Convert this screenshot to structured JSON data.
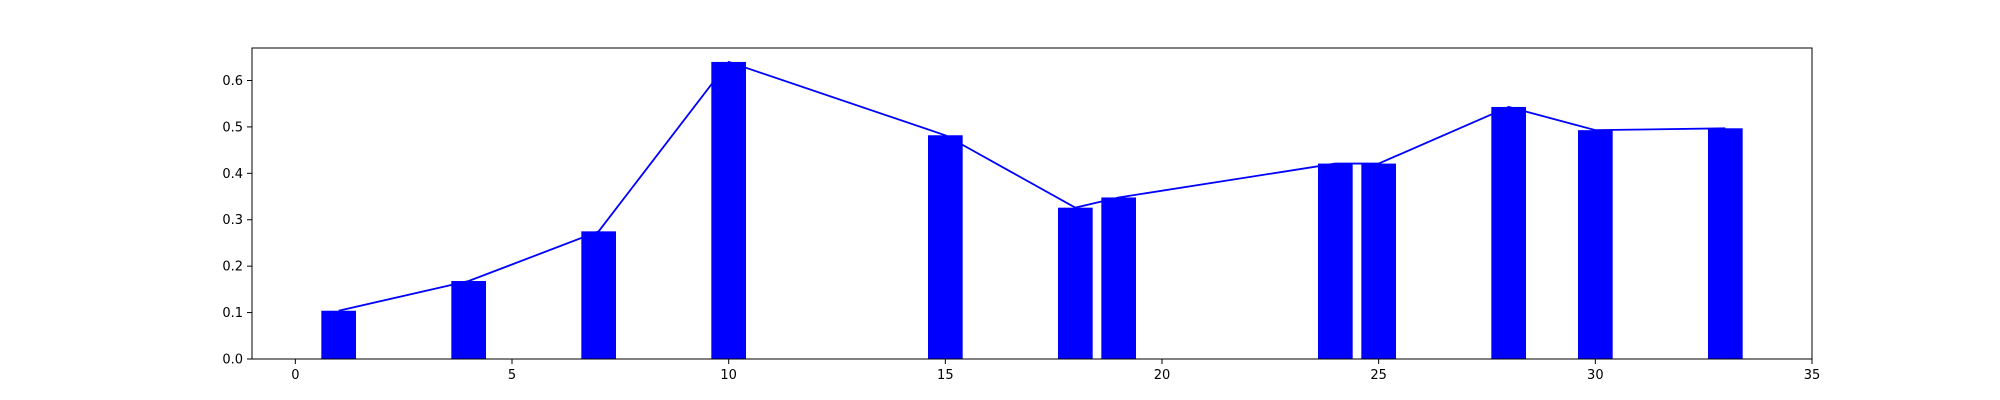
{
  "chart_data": {
    "type": "bar",
    "title": "",
    "xlabel": "",
    "ylabel": "",
    "xlim": [
      -1,
      35
    ],
    "ylim": [
      0,
      0.67
    ],
    "grid": false,
    "xticks": [
      0,
      5,
      10,
      15,
      20,
      25,
      30,
      35
    ],
    "xtick_labels": [
      "0",
      "5",
      "10",
      "15",
      "20",
      "25",
      "30",
      "35"
    ],
    "yticks": [
      0.0,
      0.1,
      0.2,
      0.3,
      0.4,
      0.5,
      0.6
    ],
    "ytick_labels": [
      "0.0",
      "0.1",
      "0.2",
      "0.3",
      "0.4",
      "0.5",
      "0.6"
    ],
    "bar_width": 0.8,
    "x": [
      1,
      4,
      7,
      10,
      15,
      18,
      19,
      24,
      25,
      28,
      30,
      33
    ],
    "values": [
      0.104,
      0.168,
      0.275,
      0.64,
      0.482,
      0.326,
      0.348,
      0.421,
      0.421,
      0.543,
      0.493,
      0.497
    ],
    "line": {
      "x": [
        1,
        4,
        7,
        10,
        15,
        18,
        19,
        24,
        25,
        28,
        30,
        33
      ],
      "y": [
        0.104,
        0.168,
        0.275,
        0.64,
        0.482,
        0.326,
        0.348,
        0.421,
        0.421,
        0.543,
        0.493,
        0.497
      ]
    },
    "colors": {
      "bar": "#0000ff",
      "line": "#0000ff",
      "axes": "#000000"
    }
  }
}
